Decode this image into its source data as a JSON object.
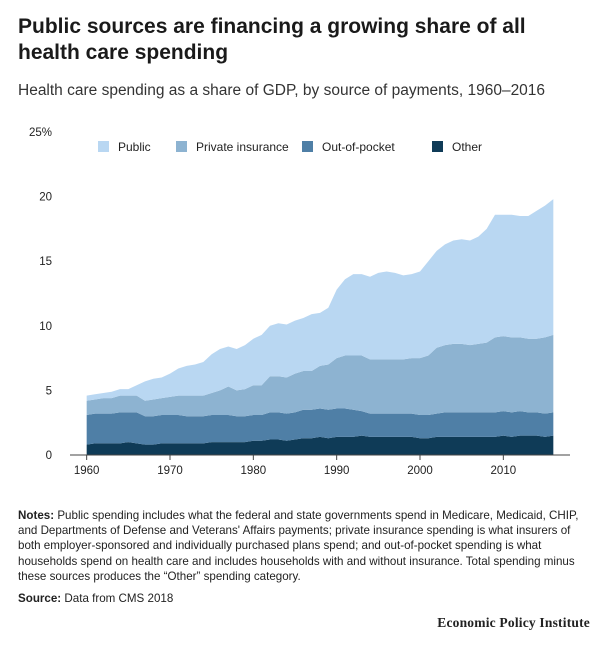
{
  "header": {
    "title": "Public sources are financing a growing share of all health care spending",
    "subtitle": "Health care spending as a share of GDP, by source of payments, 1960–2016"
  },
  "footer": {
    "notes_label": "Notes:",
    "notes_text": "Public spending includes what the federal and state governments spend in Medicare, Medicaid, CHIP, and Departments of Defense and Veterans' Affairs payments; private insurance spending is what insurers of both employer-sponsored and individually purchased plans spend; and out-of-pocket spending is what households spend on health care and includes households with and without insurance. Total spending minus these sources produces the “Other” spending category.",
    "source_label": "Source:",
    "source_text": "Data from CMS 2018",
    "brand": "Economic Policy Institute"
  },
  "chart_data": {
    "type": "area",
    "stacked": true,
    "x": [
      1960,
      1961,
      1962,
      1963,
      1964,
      1965,
      1966,
      1967,
      1968,
      1969,
      1970,
      1971,
      1972,
      1973,
      1974,
      1975,
      1976,
      1977,
      1978,
      1979,
      1980,
      1981,
      1982,
      1983,
      1984,
      1985,
      1986,
      1987,
      1988,
      1989,
      1990,
      1991,
      1992,
      1993,
      1994,
      1995,
      1996,
      1997,
      1998,
      1999,
      2000,
      2001,
      2002,
      2003,
      2004,
      2005,
      2006,
      2007,
      2008,
      2009,
      2010,
      2011,
      2012,
      2013,
      2014,
      2015,
      2016
    ],
    "series": [
      {
        "name": "Other",
        "color": "#0f3b57",
        "values": [
          0.8,
          0.9,
          0.9,
          0.9,
          0.9,
          1.0,
          0.9,
          0.8,
          0.8,
          0.9,
          0.9,
          0.9,
          0.9,
          0.9,
          0.9,
          1.0,
          1.0,
          1.0,
          1.0,
          1.0,
          1.1,
          1.1,
          1.2,
          1.2,
          1.1,
          1.2,
          1.3,
          1.3,
          1.4,
          1.3,
          1.4,
          1.4,
          1.4,
          1.5,
          1.4,
          1.4,
          1.4,
          1.4,
          1.4,
          1.4,
          1.3,
          1.3,
          1.4,
          1.4,
          1.4,
          1.4,
          1.4,
          1.4,
          1.4,
          1.4,
          1.5,
          1.4,
          1.5,
          1.5,
          1.5,
          1.4,
          1.5
        ]
      },
      {
        "name": "Out-of-pocket",
        "color": "#4f7fa6",
        "values": [
          2.3,
          2.3,
          2.3,
          2.3,
          2.4,
          2.3,
          2.4,
          2.2,
          2.2,
          2.2,
          2.2,
          2.2,
          2.1,
          2.1,
          2.1,
          2.1,
          2.1,
          2.1,
          2.0,
          2.0,
          2.0,
          2.0,
          2.1,
          2.1,
          2.1,
          2.1,
          2.2,
          2.2,
          2.2,
          2.2,
          2.2,
          2.2,
          2.1,
          1.9,
          1.8,
          1.8,
          1.8,
          1.8,
          1.8,
          1.8,
          1.8,
          1.8,
          1.8,
          1.9,
          1.9,
          1.9,
          1.9,
          1.9,
          1.9,
          1.9,
          1.9,
          1.9,
          1.9,
          1.8,
          1.8,
          1.8,
          1.8
        ]
      },
      {
        "name": "Private insurance",
        "color": "#8db3d1",
        "values": [
          1.1,
          1.1,
          1.2,
          1.2,
          1.3,
          1.3,
          1.3,
          1.2,
          1.3,
          1.3,
          1.4,
          1.5,
          1.6,
          1.6,
          1.6,
          1.7,
          1.9,
          2.2,
          2.0,
          2.1,
          2.3,
          2.3,
          2.8,
          2.8,
          2.8,
          3.0,
          3.0,
          3.0,
          3.3,
          3.5,
          3.9,
          4.1,
          4.2,
          4.3,
          4.2,
          4.2,
          4.2,
          4.2,
          4.2,
          4.3,
          4.4,
          4.6,
          5.1,
          5.2,
          5.3,
          5.3,
          5.2,
          5.3,
          5.4,
          5.8,
          5.8,
          5.8,
          5.7,
          5.7,
          5.7,
          5.9,
          6.0
        ]
      },
      {
        "name": "Public",
        "color": "#b9d7f2",
        "values": [
          0.4,
          0.4,
          0.4,
          0.5,
          0.5,
          0.5,
          0.8,
          1.5,
          1.6,
          1.6,
          1.8,
          2.1,
          2.3,
          2.4,
          2.6,
          3.0,
          3.2,
          3.1,
          3.2,
          3.4,
          3.6,
          3.9,
          3.9,
          4.1,
          4.1,
          4.1,
          4.1,
          4.4,
          4.1,
          4.4,
          5.3,
          5.9,
          6.3,
          6.3,
          6.4,
          6.7,
          6.8,
          6.7,
          6.5,
          6.5,
          6.7,
          7.3,
          7.5,
          7.8,
          8.0,
          8.1,
          8.1,
          8.3,
          8.8,
          9.5,
          9.4,
          9.5,
          9.4,
          9.5,
          9.9,
          10.2,
          10.5
        ]
      }
    ],
    "legend_order": [
      "Public",
      "Private insurance",
      "Out-of-pocket",
      "Other"
    ],
    "legend_placement": "top-left, inside plot",
    "x_ticks": [
      1960,
      1970,
      1980,
      1990,
      2000,
      2010
    ],
    "y_ticks": [
      0,
      5,
      10,
      15,
      20,
      25
    ],
    "y_tick_labels": [
      "0",
      "5",
      "10",
      "15",
      "20",
      "25%"
    ],
    "xlim": [
      1958,
      2018
    ],
    "ylim": [
      0,
      25
    ],
    "grid": false
  }
}
